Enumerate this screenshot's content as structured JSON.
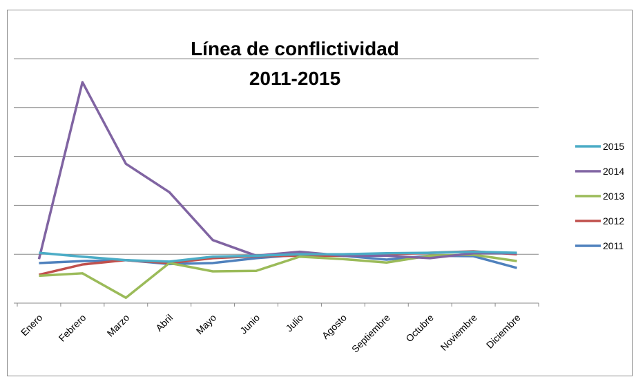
{
  "chart_data": {
    "type": "line",
    "title": [
      "Línea de conflictividad",
      "2011-2015"
    ],
    "categories": [
      "Enero",
      "Febrero",
      "Marzo",
      "Abril",
      "Mayo",
      "Junio",
      "Julio",
      "Agosto",
      "Septiembre",
      "Octubre",
      "Noviembre",
      "Diciembre"
    ],
    "series": [
      {
        "name": "2015",
        "color": "#4bacc6",
        "values": [
          1.03,
          0.95,
          0.88,
          0.85,
          0.95,
          0.97,
          1.0,
          1.0,
          1.02,
          1.03,
          1.05,
          1.03
        ]
      },
      {
        "name": "2014",
        "color": "#8064a2",
        "values": [
          0.9,
          4.52,
          2.85,
          2.27,
          1.29,
          0.97,
          1.05,
          0.97,
          0.97,
          0.92,
          1.02,
          1.02
        ]
      },
      {
        "name": "2013",
        "color": "#9bbb59",
        "values": [
          0.56,
          0.61,
          0.11,
          0.82,
          0.65,
          0.66,
          0.95,
          0.9,
          0.83,
          0.97,
          0.99,
          0.86
        ]
      },
      {
        "name": "2012",
        "color": "#c0504d",
        "values": [
          0.58,
          0.79,
          0.88,
          0.82,
          0.92,
          0.96,
          0.97,
          0.97,
          1.0,
          1.03,
          1.06,
          1.0
        ]
      },
      {
        "name": "2011",
        "color": "#4f81bd",
        "values": [
          0.82,
          0.86,
          0.88,
          0.8,
          0.82,
          0.92,
          0.99,
          0.97,
          0.89,
          0.97,
          0.96,
          0.72
        ]
      }
    ],
    "ylim": [
      0,
      5
    ],
    "yticks": [
      0,
      1,
      2,
      3,
      4,
      5
    ],
    "grid": true,
    "legend": "right"
  }
}
